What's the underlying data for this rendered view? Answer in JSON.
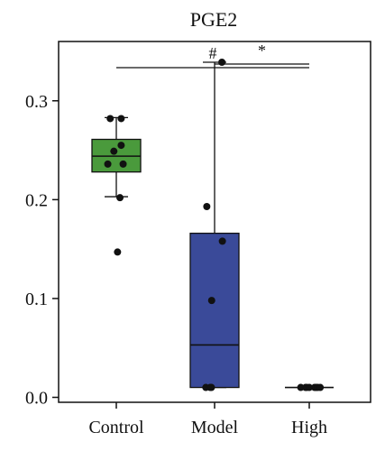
{
  "chart_data": {
    "type": "box",
    "title": "PGE2",
    "xlabel": "",
    "ylabel": "",
    "categories": [
      "Control",
      "Model",
      "High"
    ],
    "ylim": [
      -0.005,
      0.36
    ],
    "yticks": [
      "0.0",
      "0.1",
      "0.2",
      "0.3"
    ],
    "grid": false,
    "series": [
      {
        "category": "Control",
        "color": "#4a9a3c",
        "box": {
          "whisker_low": 0.203,
          "q1": 0.228,
          "median": 0.244,
          "q3": 0.261,
          "whisker_high": 0.283
        },
        "points": [
          {
            "jitter": -0.35,
            "y": 0.236
          },
          {
            "jitter": -0.1,
            "y": 0.249
          },
          {
            "jitter": 0.2,
            "y": 0.282
          },
          {
            "jitter": 0.2,
            "y": 0.255
          },
          {
            "jitter": 0.28,
            "y": 0.236
          },
          {
            "jitter": -0.25,
            "y": 0.282
          },
          {
            "jitter": 0.15,
            "y": 0.202
          },
          {
            "jitter": 0.05,
            "y": 0.147
          }
        ]
      },
      {
        "category": "Model",
        "color": "#3a4a99",
        "box": {
          "whisker_low": 0.01,
          "q1": 0.01,
          "median": 0.053,
          "q3": 0.166,
          "whisker_high": 0.339
        },
        "points": [
          {
            "jitter": -0.32,
            "y": 0.193
          },
          {
            "jitter": -0.36,
            "y": 0.01
          },
          {
            "jitter": -0.18,
            "y": 0.01
          },
          {
            "jitter": -0.13,
            "y": 0.01
          },
          {
            "jitter": -0.12,
            "y": 0.098
          },
          {
            "jitter": 0.32,
            "y": 0.158
          },
          {
            "jitter": 0.3,
            "y": 0.339
          }
        ]
      },
      {
        "category": "High",
        "color": "#3a4a99",
        "box": {
          "whisker_low": 0.01,
          "q1": 0.01,
          "median": 0.01,
          "q3": 0.01,
          "whisker_high": 0.01
        },
        "points": [
          {
            "jitter": -0.35,
            "y": 0.01
          },
          {
            "jitter": -0.15,
            "y": 0.01
          },
          {
            "jitter": -0.11,
            "y": 0.01
          },
          {
            "jitter": 0.0,
            "y": 0.01
          },
          {
            "jitter": 0.22,
            "y": 0.01
          },
          {
            "jitter": 0.28,
            "y": 0.01
          },
          {
            "jitter": 0.34,
            "y": 0.01
          },
          {
            "jitter": 0.45,
            "y": 0.01
          }
        ]
      }
    ],
    "significance": [
      {
        "label": "#",
        "from": "Control",
        "to": "High"
      },
      {
        "label": "*",
        "from": "Model",
        "to": "High"
      }
    ]
  }
}
